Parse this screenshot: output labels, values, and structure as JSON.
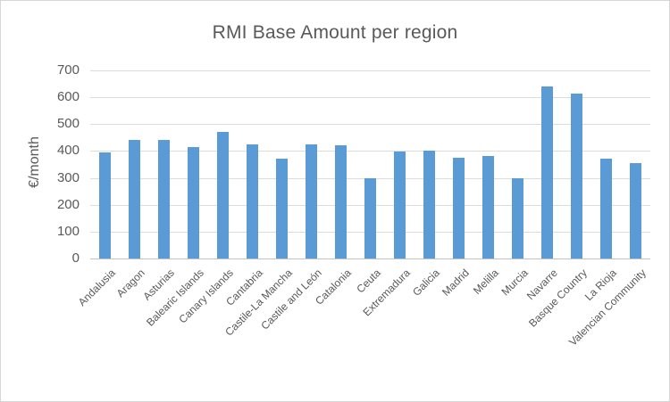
{
  "chart_data": {
    "type": "bar",
    "title": "RMI Base Amount per region",
    "xlabel": "",
    "ylabel": "€/month",
    "ylim": [
      0,
      700
    ],
    "yticks": [
      0,
      100,
      200,
      300,
      400,
      500,
      600,
      700
    ],
    "grid": true,
    "legend": false,
    "categories": [
      "Andalusia",
      "Aragon",
      "Asturias",
      "Balearic Islands",
      "Canary Islands",
      "Cantabria",
      "Castile-La Mancha",
      "Castile and León",
      "Catalonia",
      "Ceuta",
      "Extremadura",
      "Galicia",
      "Madrid",
      "Melilla",
      "Murcia",
      "Navarre",
      "Basque Country",
      "La Rioja",
      "Valencian Community"
    ],
    "values": [
      396,
      440,
      441,
      414,
      470,
      425,
      372,
      426,
      422,
      300,
      399,
      400,
      376,
      381,
      300,
      640,
      615,
      372,
      356
    ]
  },
  "colors": {
    "bar": "#5b9bd5",
    "grid": "#dcdcdc",
    "axis_line": "#c3c3c3",
    "text": "#595959",
    "frame_border": "#d6d6d6",
    "background": "#ffffff"
  }
}
